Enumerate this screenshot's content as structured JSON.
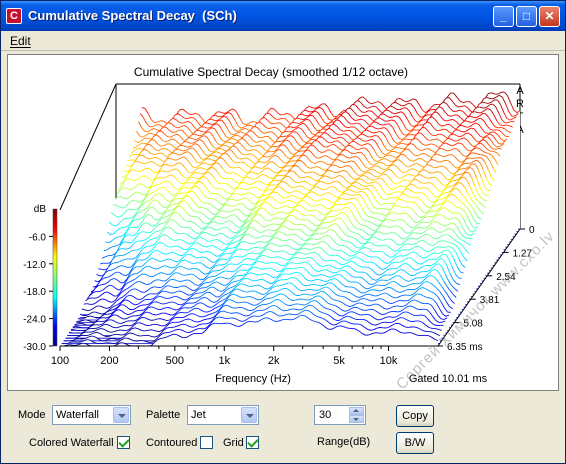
{
  "window": {
    "title": "Cumulative Spectral Decay  (SCh)",
    "app_icon_letter": "C",
    "minimize": "_",
    "maximize": "□",
    "close": "✕"
  },
  "menu": {
    "edit": "Edit"
  },
  "plot": {
    "title": "Cumulative Spectral Decay (smoothed 1/12 octave)",
    "brand": [
      "A",
      "R",
      "T",
      "A"
    ],
    "db_label": "dB",
    "db_ticks": [
      "-6.0",
      "-12.0",
      "-18.0",
      "-24.0",
      "-30.0"
    ],
    "freq_ticks": [
      "100",
      "200",
      "500",
      "1k",
      "2k",
      "5k",
      "10k"
    ],
    "xlabel": "Frequency (Hz)",
    "time_ticks": [
      "0",
      "1.27",
      "2.54",
      "3.81",
      "5.08",
      "6.35 ms"
    ],
    "gated": "Gated 10.01 ms"
  },
  "chart_data": {
    "type": "area",
    "title": "Cumulative Spectral Decay (smoothed 1/12 octave)",
    "xlabel": "Frequency (Hz)",
    "ylabel": "dB",
    "x_scale": "log",
    "xlim": [
      100,
      20000
    ],
    "ylim": [
      -30,
      0
    ],
    "time_axis_ms": [
      0,
      1.27,
      2.54,
      3.81,
      5.08,
      6.35
    ],
    "gated_ms": 10.01,
    "x": [
      100,
      150,
      200,
      300,
      500,
      700,
      1000,
      1500,
      2000,
      3000,
      5000,
      7000,
      10000,
      15000,
      20000
    ],
    "series": [
      {
        "values": [
          -5,
          -6,
          -5,
          -5,
          -6,
          -5,
          -4,
          -4,
          -3,
          -2,
          -3,
          -2,
          -2,
          -1,
          -3
        ]
      },
      {
        "values": [
          -12,
          -9,
          -8,
          -8,
          -9,
          -9,
          -7,
          -6,
          -5,
          -6,
          -8,
          -7,
          -6,
          -5,
          -9
        ]
      },
      {
        "values": [
          -24,
          -20,
          -16,
          -14,
          -16,
          -15,
          -12,
          -11,
          -12,
          -10,
          -14,
          -12,
          -13,
          -11,
          -16
        ]
      },
      {
        "values": [
          -30,
          -28,
          -26,
          -24,
          -23,
          -22,
          -19,
          -18,
          -17,
          -18,
          -20,
          -21,
          -20,
          -19,
          -24
        ]
      },
      {
        "values": [
          -30,
          -30,
          -30,
          -30,
          -28,
          -27,
          -25,
          -25,
          -24,
          -24,
          -26,
          -27,
          -27,
          -27,
          -29
        ]
      }
    ]
  },
  "controls": {
    "mode_label": "Mode",
    "mode_value": "Waterfall",
    "palette_label": "Palette",
    "palette_value": "Jet",
    "range_value": "30",
    "range_label": "Range(dB)",
    "copy_label": "Copy",
    "bw_label": "B/W",
    "colored_label": "Colored Waterfall",
    "colored_checked": true,
    "contoured_label": "Contoured",
    "contoured_checked": false,
    "grid_label": "Grid",
    "grid_checked": true
  },
  "watermark": "Сергей Химичок www.cxo.lv"
}
